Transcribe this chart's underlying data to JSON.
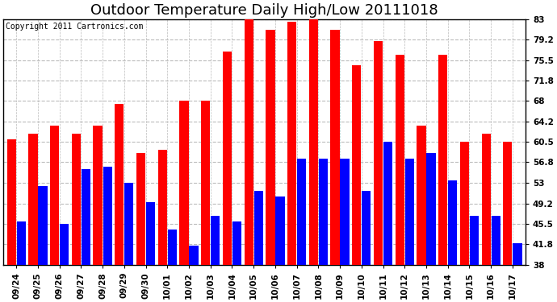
{
  "title": "Outdoor Temperature Daily High/Low 20111018",
  "copyright": "Copyright 2011 Cartronics.com",
  "labels": [
    "09/24",
    "09/25",
    "09/26",
    "09/27",
    "09/28",
    "09/29",
    "09/30",
    "10/01",
    "10/02",
    "10/03",
    "10/04",
    "10/05",
    "10/06",
    "10/07",
    "10/08",
    "10/09",
    "10/10",
    "10/11",
    "10/12",
    "10/13",
    "10/14",
    "10/15",
    "10/16",
    "10/17"
  ],
  "highs": [
    61.0,
    62.0,
    63.5,
    62.0,
    63.5,
    67.5,
    58.5,
    59.0,
    68.0,
    68.0,
    77.0,
    83.5,
    81.0,
    82.5,
    83.5,
    81.0,
    74.5,
    79.0,
    76.5,
    63.5,
    76.5,
    60.5,
    62.0,
    60.5
  ],
  "lows": [
    46.0,
    52.5,
    45.5,
    55.5,
    56.0,
    53.0,
    49.5,
    44.5,
    41.5,
    47.0,
    46.0,
    51.5,
    50.5,
    57.5,
    57.5,
    57.5,
    51.5,
    60.5,
    57.5,
    58.5,
    53.5,
    47.0,
    47.0,
    42.0
  ],
  "high_color": "#FF0000",
  "low_color": "#0000FF",
  "background_color": "#FFFFFF",
  "plot_bg_color": "#FFFFFF",
  "grid_color": "#BBBBBB",
  "ylim_min": 38.0,
  "ylim_max": 83.0,
  "yticks": [
    38.0,
    41.8,
    45.5,
    49.2,
    53.0,
    56.8,
    60.5,
    64.2,
    68.0,
    71.8,
    75.5,
    79.2,
    83.0
  ],
  "title_fontsize": 13,
  "copyright_fontsize": 7,
  "tick_fontsize": 7.5,
  "bar_width": 0.42,
  "bar_gap": 0.03
}
